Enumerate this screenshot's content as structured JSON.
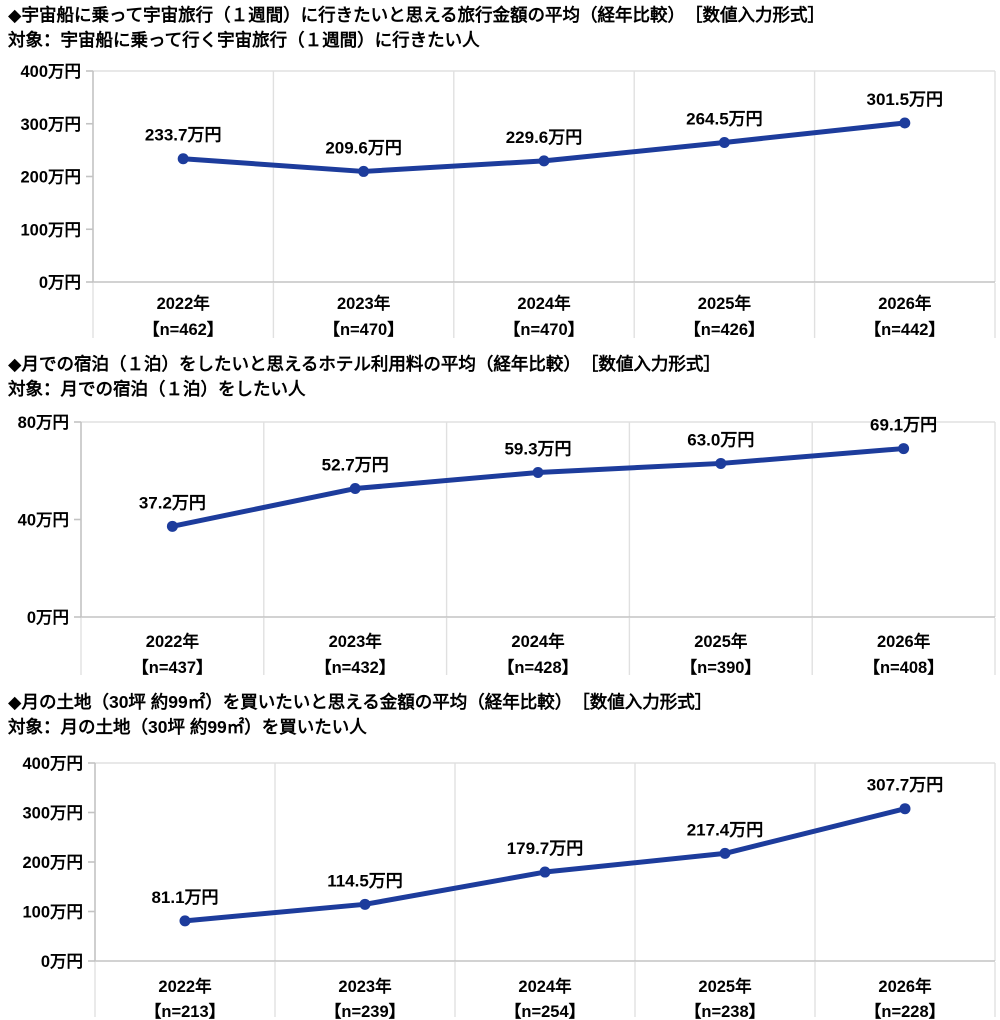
{
  "colors": {
    "line": "#1d3c9c",
    "axis": "#c3c3c3",
    "grid": "#e0e0e0",
    "text": "#000000",
    "background": "#ffffff"
  },
  "unit_suffix": "万円",
  "chart_data": [
    {
      "type": "line",
      "title": "◆宇宙船に乗って宇宙旅行（１週間）に行きたいと思える旅行金額の平均（経年比較）　［数値入力形式］",
      "subtitle": "対象：宇宙船に乗って行く宇宙旅行（１週間）に行きたい人",
      "categories": [
        "2022年",
        "2023年",
        "2024年",
        "2025年",
        "2026年"
      ],
      "n_labels": [
        "【n=462】",
        "【n=470】",
        "【n=470】",
        "【n=426】",
        "【n=442】"
      ],
      "values": [
        233.7,
        209.6,
        229.6,
        264.5,
        301.5
      ],
      "value_labels": [
        "233.7万円",
        "209.6万円",
        "229.6万円",
        "264.5万円",
        "301.5万円"
      ],
      "ylim": [
        0,
        400
      ],
      "y_ticks": [
        {
          "value": 400,
          "label": "400万円"
        },
        {
          "value": 300,
          "label": "300万円"
        },
        {
          "value": 200,
          "label": "200万円"
        },
        {
          "value": 100,
          "label": "100万円"
        },
        {
          "value": 0,
          "label": "0万円"
        }
      ],
      "grid": "vertical-only",
      "legend": "none"
    },
    {
      "type": "line",
      "title": "◆月での宿泊（１泊）をしたいと思えるホテル利用料の平均（経年比較）　［数値入力形式］",
      "subtitle": "対象：月での宿泊（１泊）をしたい人",
      "categories": [
        "2022年",
        "2023年",
        "2024年",
        "2025年",
        "2026年"
      ],
      "n_labels": [
        "【n=437】",
        "【n=432】",
        "【n=428】",
        "【n=390】",
        "【n=408】"
      ],
      "values": [
        37.2,
        52.7,
        59.3,
        63.0,
        69.1
      ],
      "value_labels": [
        "37.2万円",
        "52.7万円",
        "59.3万円",
        "63.0万円",
        "69.1万円"
      ],
      "ylim": [
        0,
        80
      ],
      "y_ticks": [
        {
          "value": 80,
          "label": "80万円"
        },
        {
          "value": 40,
          "label": "40万円"
        },
        {
          "value": 0,
          "label": "0万円"
        }
      ],
      "grid": "vertical-only",
      "legend": "none"
    },
    {
      "type": "line",
      "title": "◆月の土地（30坪 約99㎡）を買いたいと思える金額の平均（経年比較）　［数値入力形式］",
      "subtitle": "対象：月の土地（30坪 約99㎡）を買いたい人",
      "categories": [
        "2022年",
        "2023年",
        "2024年",
        "2025年",
        "2026年"
      ],
      "n_labels": [
        "【n=213】",
        "【n=239】",
        "【n=254】",
        "【n=238】",
        "【n=228】"
      ],
      "values": [
        81.1,
        114.5,
        179.7,
        217.4,
        307.7
      ],
      "value_labels": [
        "81.1万円",
        "114.5万円",
        "179.7万円",
        "217.4万円",
        "307.7万円"
      ],
      "ylim": [
        0,
        400
      ],
      "y_ticks": [
        {
          "value": 400,
          "label": "400万円"
        },
        {
          "value": 300,
          "label": "300万円"
        },
        {
          "value": 200,
          "label": "200万円"
        },
        {
          "value": 100,
          "label": "100万円"
        },
        {
          "value": 0,
          "label": "0万円"
        }
      ],
      "grid": "vertical-only",
      "legend": "none"
    }
  ]
}
